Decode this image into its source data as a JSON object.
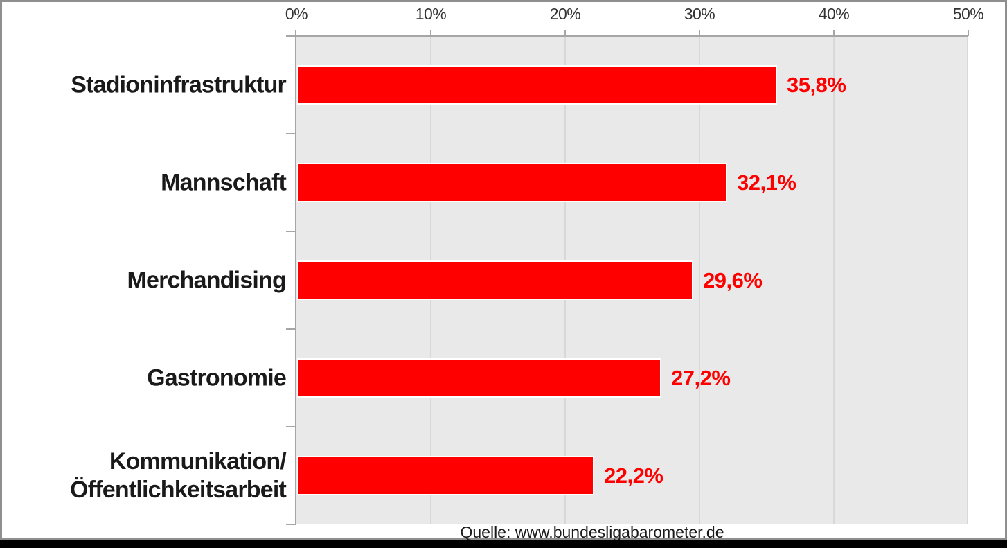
{
  "chart_data": {
    "type": "bar",
    "orientation": "horizontal",
    "title": "",
    "categories": [
      "Stadioninfrastruktur",
      "Mannschaft",
      "Merchandising",
      "Gastronomie",
      "Kommunikation/Öffentlichkeitsarbeit"
    ],
    "category_display_lines": [
      [
        "Stadioninfrastruktur"
      ],
      [
        "Mannschaft"
      ],
      [
        "Merchandising"
      ],
      [
        "Gastronomie"
      ],
      [
        "Kommunikation/",
        "Öffentlichkeitsarbeit"
      ]
    ],
    "values": [
      35.8,
      32.1,
      29.6,
      27.2,
      22.2
    ],
    "value_labels": [
      "35,8%",
      "32,1%",
      "29,6%",
      "27,2%",
      "22,2%"
    ],
    "x_ticks": [
      "0%",
      "10%",
      "20%",
      "30%",
      "40%",
      "50%"
    ],
    "xlim": [
      0,
      50
    ],
    "xlabel": "",
    "ylabel": "",
    "grid": "vertical",
    "legend": "none",
    "axis_position": "top",
    "source": "Quelle: www.bundesligabarometer.de",
    "colors": {
      "bar": "#fe0000",
      "bar_border": "#ffffff",
      "value_label": "#fe0000",
      "plot_background": "#e9e9e9",
      "gridline": "#d8d8d8",
      "axis_line": "#a6a6a6",
      "text": "#1a1a1a",
      "frame_border": "#8f8f8f",
      "bottom_strip": "#000000"
    }
  }
}
